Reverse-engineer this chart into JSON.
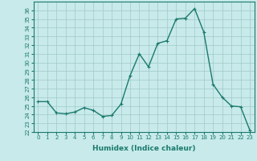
{
  "x": [
    0,
    1,
    2,
    3,
    4,
    5,
    6,
    7,
    8,
    9,
    10,
    11,
    12,
    13,
    14,
    15,
    16,
    17,
    18,
    19,
    20,
    21,
    22,
    23
  ],
  "y": [
    25.5,
    25.5,
    24.2,
    24.1,
    24.3,
    24.8,
    24.5,
    23.8,
    23.9,
    25.2,
    28.5,
    31.0,
    29.5,
    32.2,
    32.5,
    35.0,
    35.1,
    36.2,
    33.5,
    27.5,
    26.0,
    25.0,
    24.9,
    22.2
  ],
  "xlabel": "Humidex (Indice chaleur)",
  "line_color": "#1a7a6e",
  "bg_color": "#c8eaea",
  "grid_color": "#a0c8c8",
  "ylim": [
    22,
    37
  ],
  "xlim": [
    -0.5,
    23.5
  ],
  "yticks": [
    22,
    23,
    24,
    25,
    26,
    27,
    28,
    29,
    30,
    31,
    32,
    33,
    34,
    35,
    36
  ],
  "xticks": [
    0,
    1,
    2,
    3,
    4,
    5,
    6,
    7,
    8,
    9,
    10,
    11,
    12,
    13,
    14,
    15,
    16,
    17,
    18,
    19,
    20,
    21,
    22,
    23
  ],
  "xlabel_fontsize": 6.5,
  "tick_fontsize": 5.0,
  "line_width": 1.0,
  "marker_size": 3.0
}
